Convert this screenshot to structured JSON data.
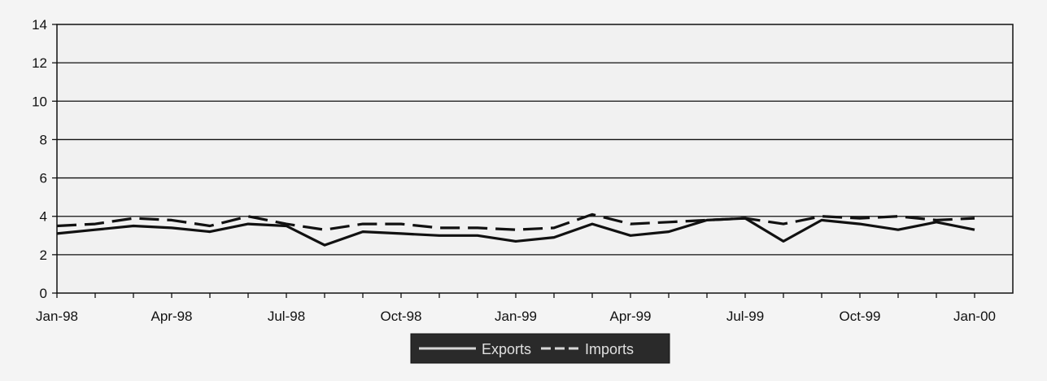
{
  "chart_data": {
    "type": "line",
    "title": "",
    "xlabel": "",
    "ylabel": "",
    "ylim": [
      0,
      14
    ],
    "yticks": [
      0,
      2,
      4,
      6,
      8,
      10,
      12,
      14
    ],
    "x_tick_labels": [
      "Jan-98",
      "Apr-98",
      "Jul-98",
      "Oct-98",
      "Jan-99",
      "Apr-99",
      "Jul-99",
      "Oct-99",
      "Jan-00"
    ],
    "x_tick_every": 3,
    "x": [
      "Jan-98",
      "Feb-98",
      "Mar-98",
      "Apr-98",
      "May-98",
      "Jun-98",
      "Jul-98",
      "Aug-98",
      "Sep-98",
      "Oct-98",
      "Nov-98",
      "Dec-98",
      "Jan-99",
      "Feb-99",
      "Mar-99",
      "Apr-99",
      "May-99",
      "Jun-99",
      "Jul-99",
      "Aug-99",
      "Sep-99",
      "Oct-99",
      "Nov-99",
      "Dec-99",
      "Jan-00"
    ],
    "grid": true,
    "legend": "bottom",
    "series": [
      {
        "name": "Exports",
        "style": "solid",
        "color": "#111111",
        "values": [
          3.1,
          3.3,
          3.5,
          3.4,
          3.2,
          3.6,
          3.5,
          2.5,
          3.2,
          3.1,
          3.0,
          3.0,
          2.7,
          2.9,
          3.6,
          3.0,
          3.2,
          3.8,
          3.9,
          2.7,
          3.8,
          3.6,
          3.3,
          3.7,
          3.3
        ]
      },
      {
        "name": "Imports",
        "style": "dashed",
        "color": "#111111",
        "values": [
          3.5,
          3.6,
          3.9,
          3.8,
          3.5,
          4.0,
          3.6,
          3.3,
          3.6,
          3.6,
          3.4,
          3.4,
          3.3,
          3.4,
          4.1,
          3.6,
          3.7,
          3.8,
          3.9,
          3.6,
          4.0,
          3.9,
          4.0,
          3.8,
          3.9
        ]
      }
    ]
  }
}
